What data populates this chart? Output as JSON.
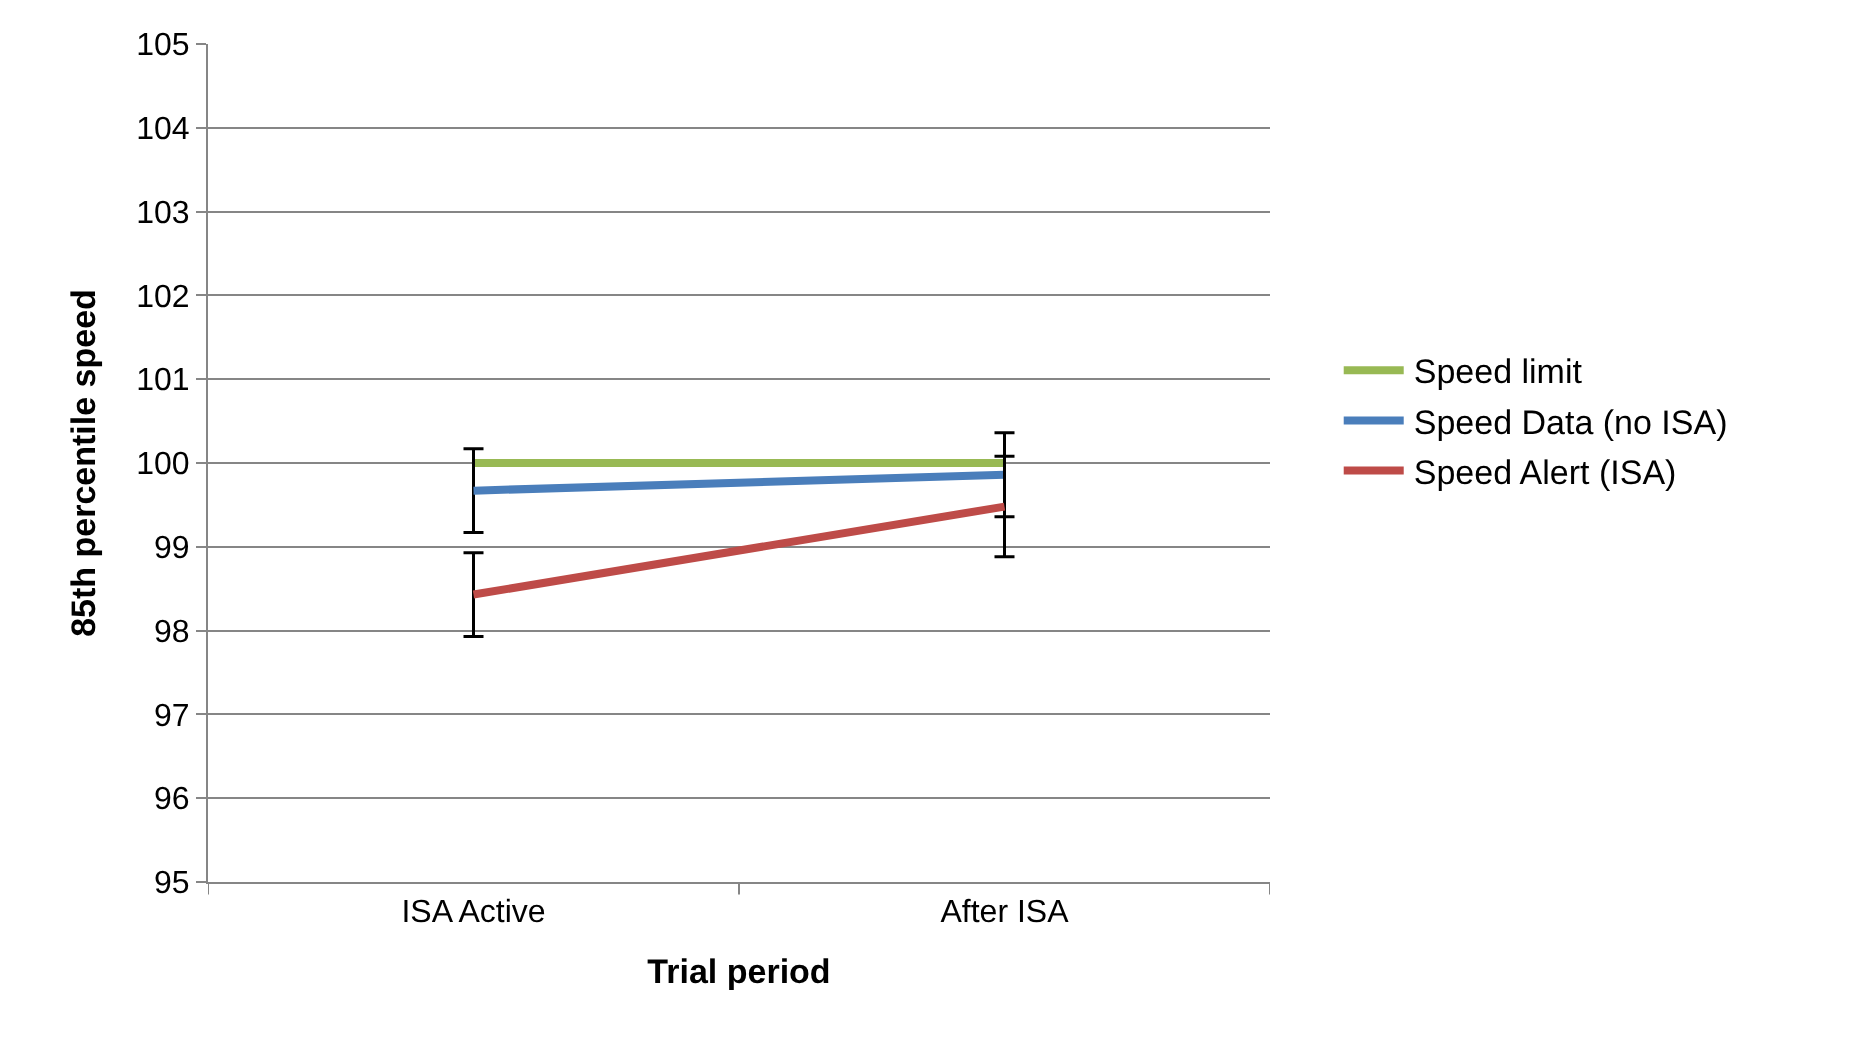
{
  "chart_data": {
    "type": "line",
    "xlabel": "Trial period",
    "ylabel": "85th percentile speed",
    "categories": [
      "ISA Active",
      "After ISA"
    ],
    "series": [
      {
        "name": "Speed Data (no ISA)",
        "color": "#4a7ebb",
        "values": [
          99.67,
          99.86
        ],
        "errors": [
          0.5,
          0.5
        ]
      },
      {
        "name": "Speed Alert (ISA)",
        "color": "#be4b48",
        "values": [
          98.43,
          99.48
        ],
        "errors": [
          0.5,
          0.6
        ]
      },
      {
        "name": "Speed limit",
        "color": "#98b954",
        "values": [
          100,
          100
        ]
      }
    ],
    "ylim": [
      95,
      105
    ],
    "yticks": [
      95,
      96,
      97,
      98,
      99,
      100,
      101,
      102,
      103,
      104,
      105
    ],
    "grid": "y",
    "legend": "right",
    "marker": "none",
    "line_style": "solid"
  }
}
